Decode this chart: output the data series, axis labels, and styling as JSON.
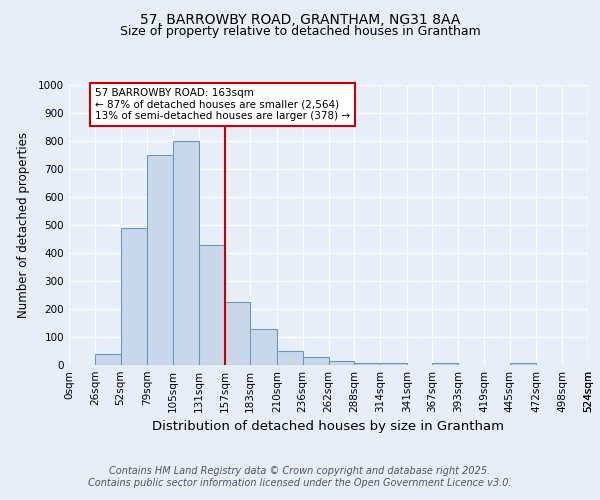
{
  "title1": "57, BARROWBY ROAD, GRANTHAM, NG31 8AA",
  "title2": "Size of property relative to detached houses in Grantham",
  "xlabel": "Distribution of detached houses by size in Grantham",
  "ylabel": "Number of detached properties",
  "footnote1": "Contains HM Land Registry data © Crown copyright and database right 2025.",
  "footnote2": "Contains public sector information licensed under the Open Government Licence v3.0.",
  "bin_edges": [
    0,
    26,
    52,
    79,
    105,
    131,
    157,
    183,
    210,
    236,
    262,
    288,
    314,
    341,
    367,
    393,
    419,
    445,
    472,
    498,
    524
  ],
  "bar_heights": [
    0,
    40,
    490,
    750,
    800,
    430,
    225,
    130,
    50,
    28,
    15,
    8,
    8,
    0,
    8,
    0,
    0,
    8,
    0,
    0
  ],
  "bar_color": "#c8d8ea",
  "bar_edgecolor": "#6699bb",
  "vline_x": 157,
  "vline_color": "#cc0000",
  "annotation_text": "57 BARROWBY ROAD: 163sqm\n← 87% of detached houses are smaller (2,564)\n13% of semi-detached houses are larger (378) →",
  "annotation_box_edgecolor": "#cc0000",
  "annotation_box_facecolor": "#ffffff",
  "ylim": [
    0,
    1000
  ],
  "yticks": [
    0,
    100,
    200,
    300,
    400,
    500,
    600,
    700,
    800,
    900,
    1000
  ],
  "background_color": "#e8eef8",
  "axes_background": "#e8eef8",
  "grid_color": "#ffffff",
  "title1_fontsize": 10,
  "title2_fontsize": 9,
  "xlabel_fontsize": 9.5,
  "ylabel_fontsize": 8.5,
  "tick_fontsize": 7.5,
  "annotation_fontsize": 7.5,
  "footnote_fontsize": 7
}
